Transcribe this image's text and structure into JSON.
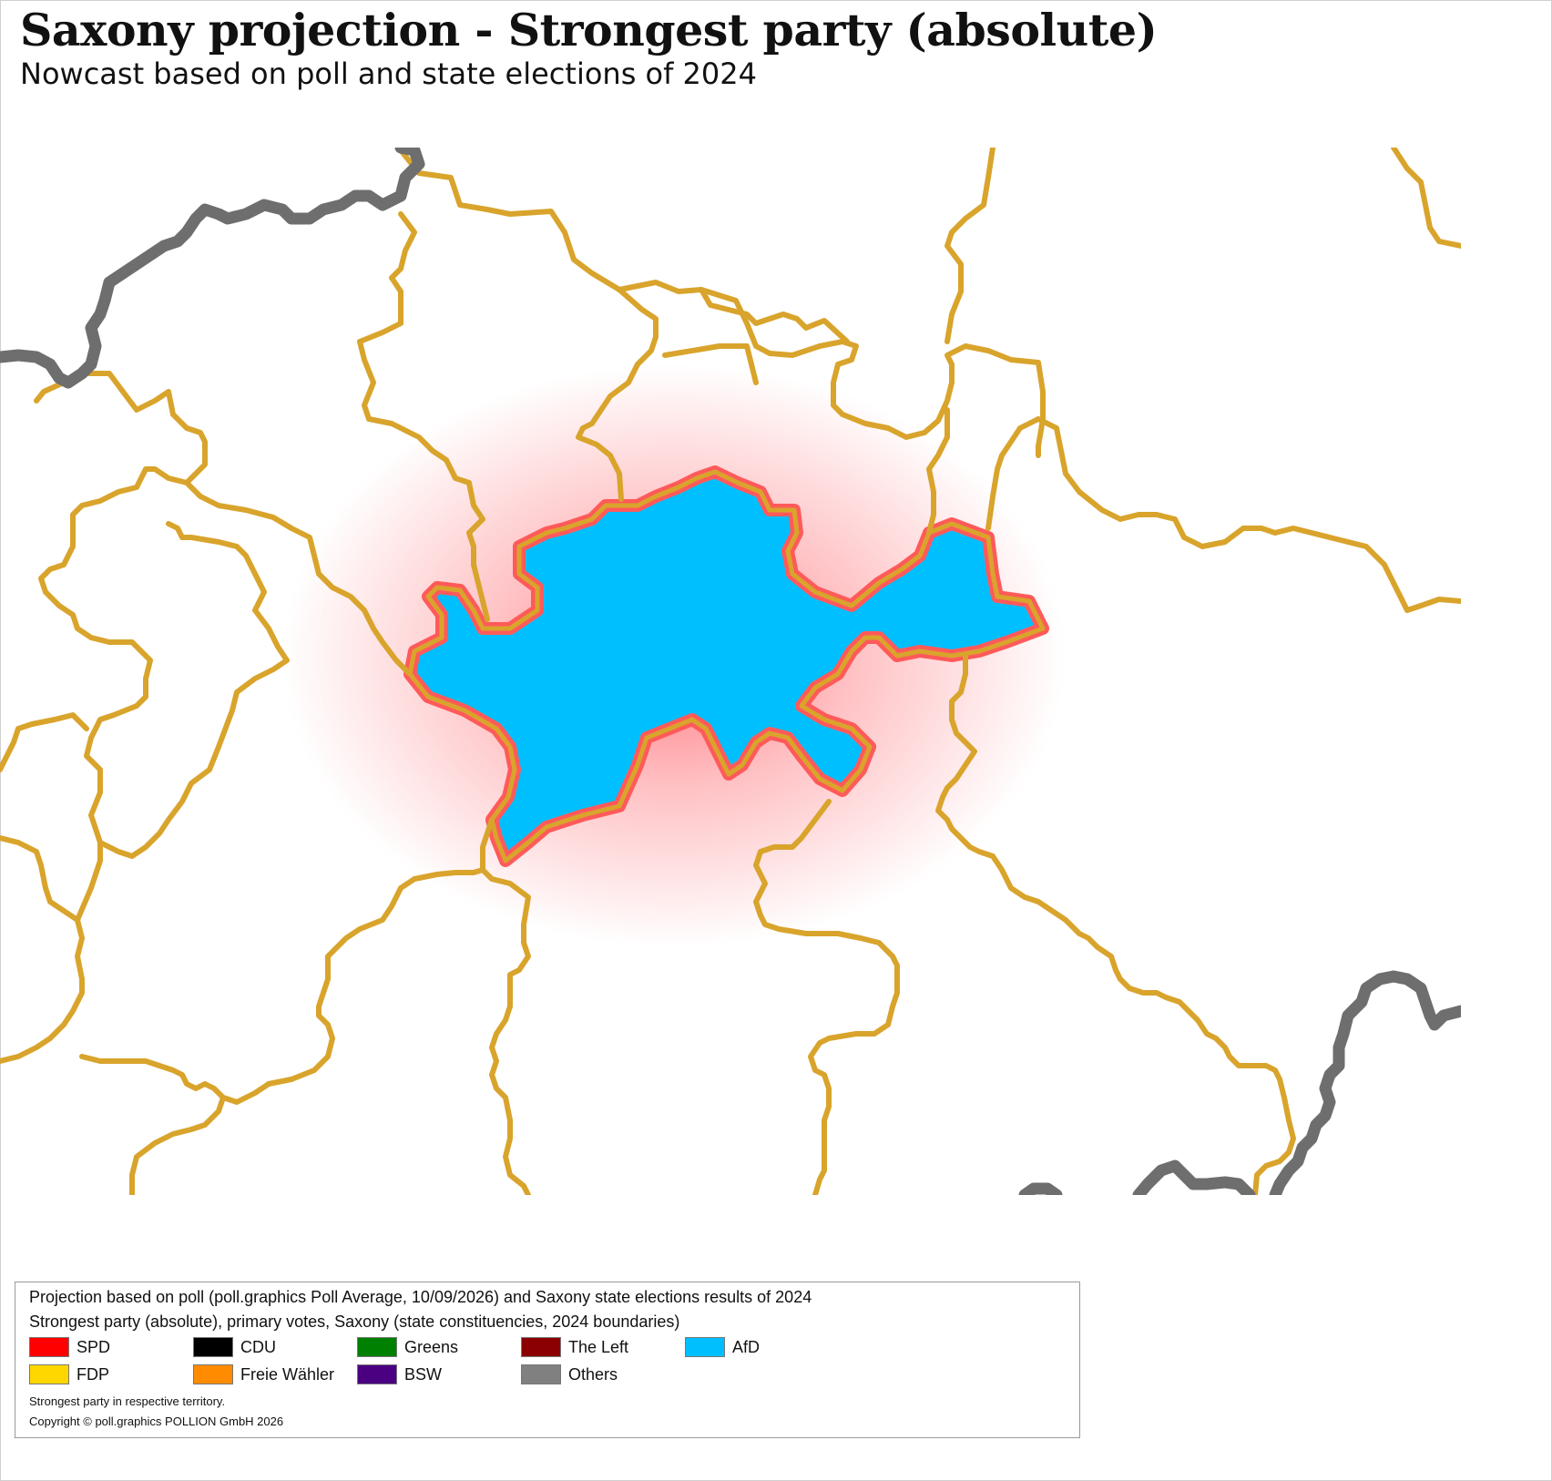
{
  "header": {
    "title": "Saxony projection - Strongest party (absolute)",
    "subtitle": "Nowcast based on poll and state elections of 2024"
  },
  "map": {
    "colors": {
      "constituency_border": "#D9A42C",
      "state_border": "#6E6E6E",
      "highlight_fill": "#00BFFF",
      "highlight_glow": "#FF4D55"
    },
    "highlighted_party": "AfD"
  },
  "legend": {
    "line1": "Projection based on poll (poll.graphics Poll Average, 10/09/2026) and Saxony state elections results of 2024",
    "line2": "Strongest party (absolute), primary votes, Saxony (state constituencies, 2024 boundaries)",
    "entries": [
      {
        "label": "SPD",
        "color": "#FF0000"
      },
      {
        "label": "CDU",
        "color": "#000000"
      },
      {
        "label": "Greens",
        "color": "#008000"
      },
      {
        "label": "The Left",
        "color": "#8B0000"
      },
      {
        "label": "AfD",
        "color": "#00BFFF"
      },
      {
        "label": "FDP",
        "color": "#FFD700"
      },
      {
        "label": "Freie Wähler",
        "color": "#FF8C00"
      },
      {
        "label": "BSW",
        "color": "#4B0082"
      },
      {
        "label": "Others",
        "color": "#808080"
      }
    ],
    "footnote": "Strongest party in respective territory.",
    "copyright": "Copyright © poll.graphics POLLION GmbH 2026"
  }
}
